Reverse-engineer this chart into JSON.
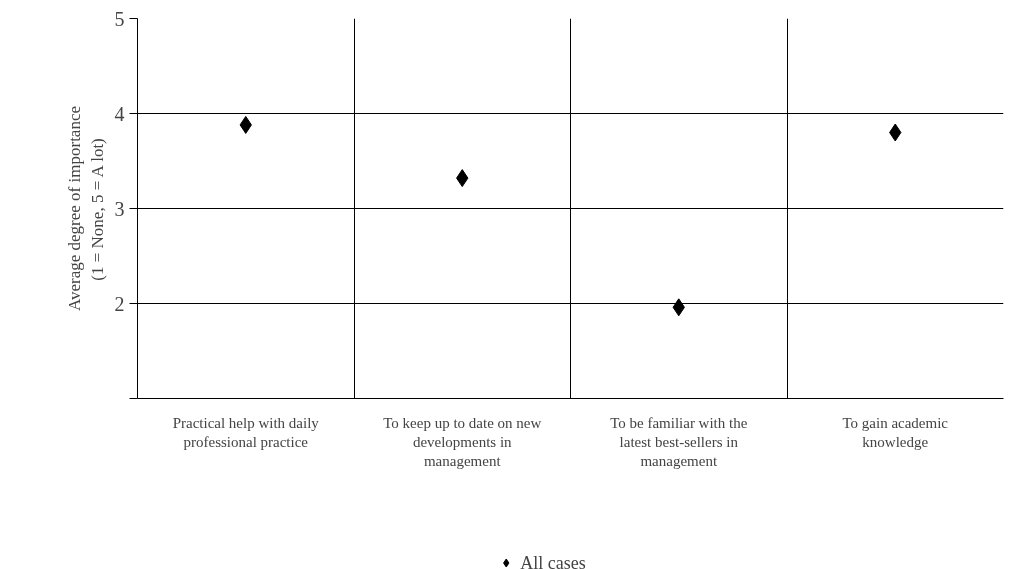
{
  "chart_data": {
    "type": "scatter",
    "ylabel": "Average degree of importance\n(1 = None, 5 = A lot)",
    "categories": [
      "Practical help with daily professional practice",
      "To keep up to date on new developments in management",
      "To be familiar with the latest best-sellers in management",
      "To gain academic knowledge"
    ],
    "series": [
      {
        "name": "All cases",
        "color": "#000000",
        "values": [
          3.88,
          3.32,
          1.96,
          3.8
        ]
      }
    ],
    "ylim": [
      1,
      5
    ],
    "yticks": [
      {
        "value": 1,
        "label": null
      },
      2,
      3,
      4,
      5
    ],
    "grid": true,
    "legend": "bottom",
    "marker": "diamond"
  }
}
